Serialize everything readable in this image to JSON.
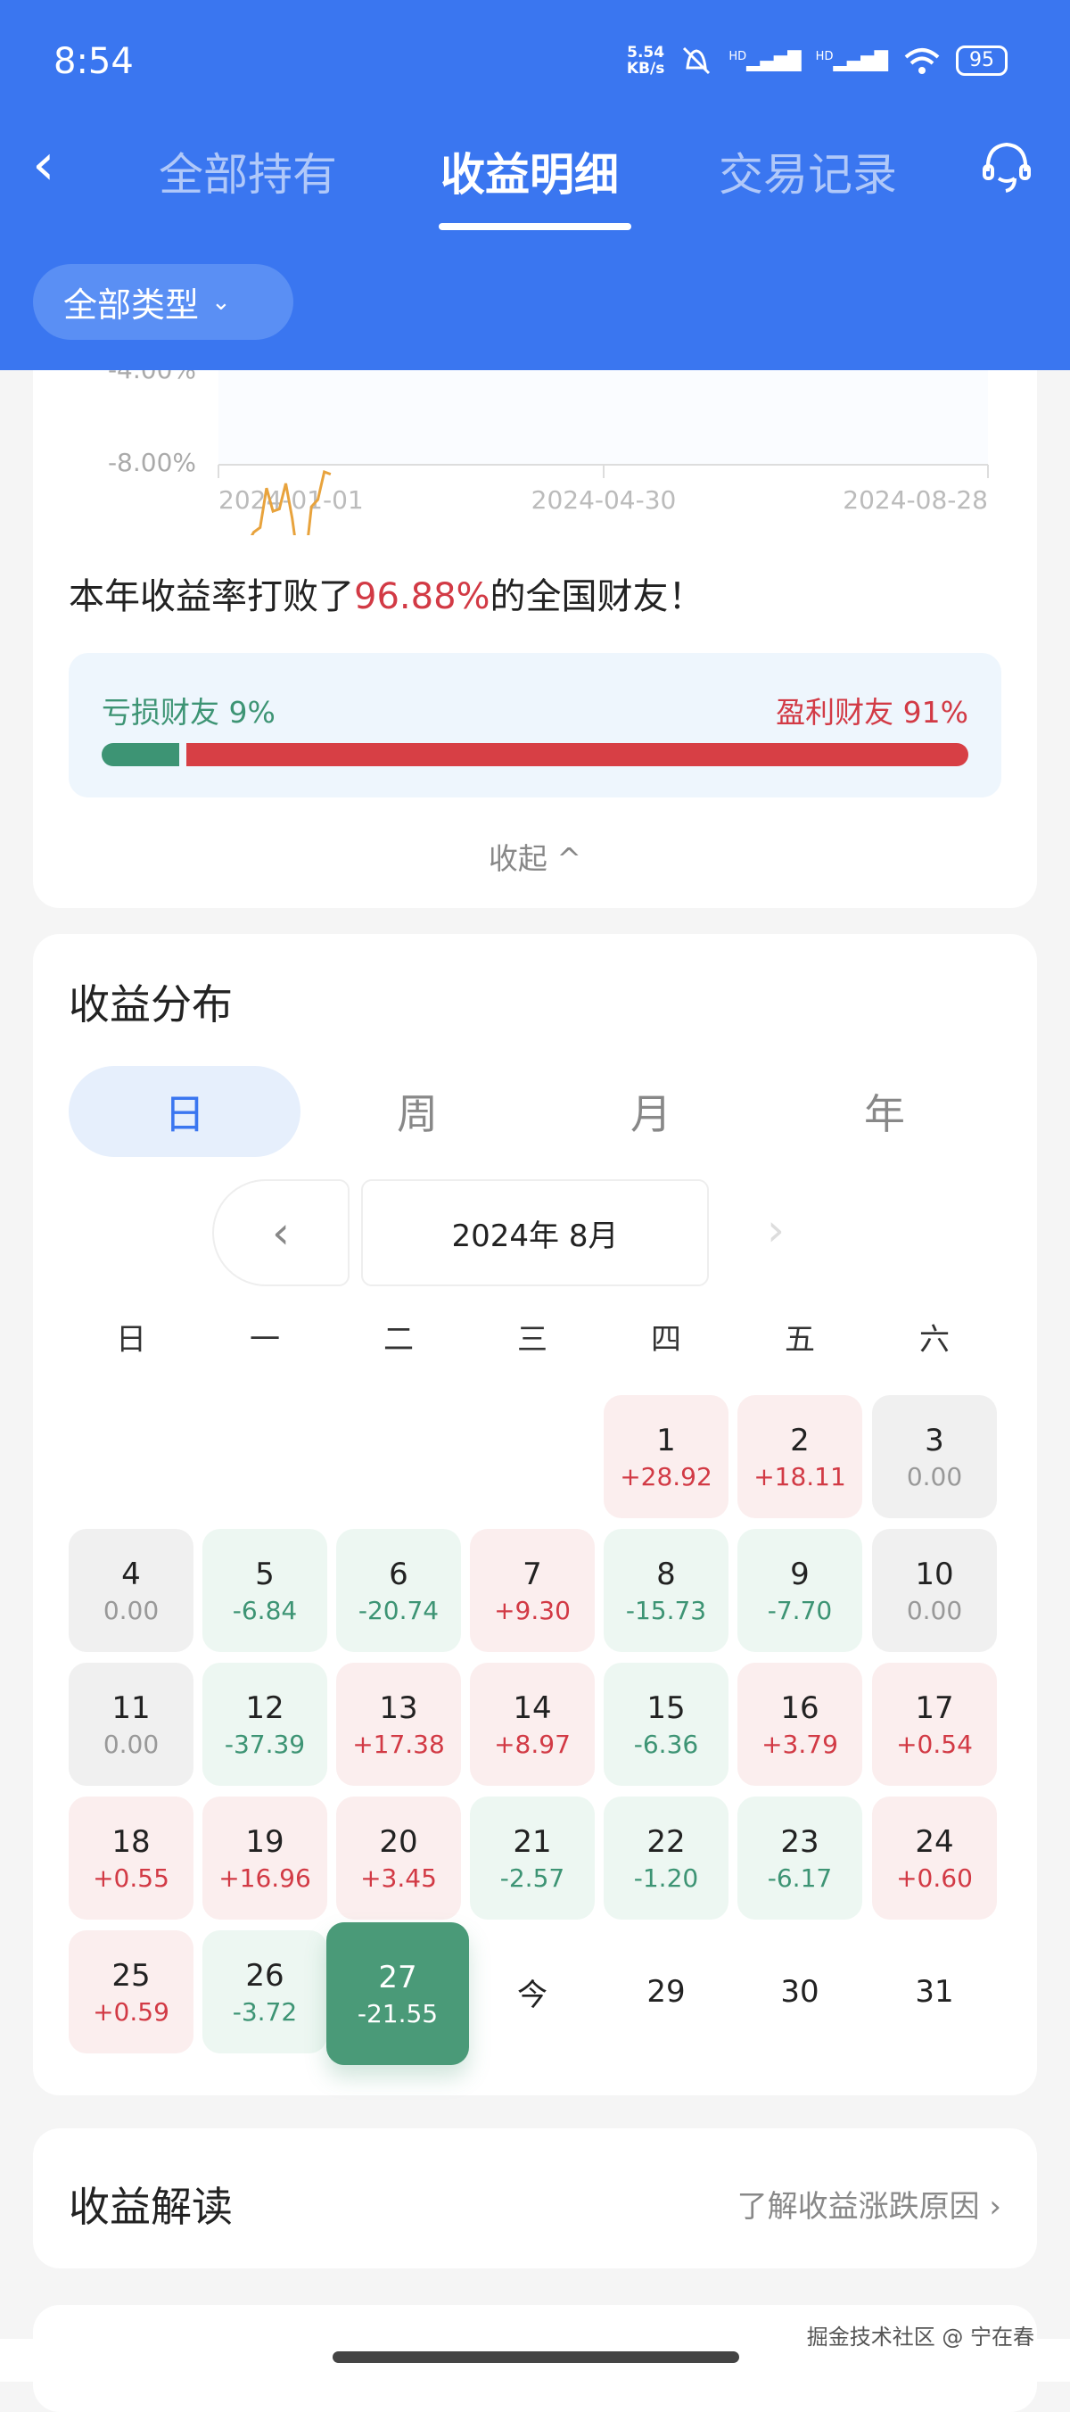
{
  "status_bar": {
    "time": "8:54",
    "net_speed_value": "5.54",
    "net_speed_unit": "KB/s",
    "signal1": "HD",
    "signal2": "HD",
    "battery": "95",
    "icons": [
      "mute-bell-icon",
      "signal-icon",
      "signal-icon",
      "wifi-icon",
      "battery-icon"
    ]
  },
  "nav": {
    "back_icon": "chevron-left-icon",
    "tabs": [
      {
        "label": "全部持有"
      },
      {
        "label": "收益明细",
        "active": true
      },
      {
        "label": "交易记录"
      }
    ],
    "support_icon": "customer-service-icon"
  },
  "filter": {
    "label": "全部类型",
    "icon": "chevron-down-icon"
  },
  "chart_data": {
    "type": "line",
    "y_tick_labels": [
      "-4.00%",
      "-8.00%"
    ],
    "x_tick_labels": [
      "2024-01-01",
      "2024-04-30",
      "2024-08-28"
    ],
    "line_color": "#e8a33d",
    "series": [
      {
        "x": [
          "2024-01-06",
          "2024-01-08",
          "2024-01-10",
          "2024-01-12",
          "2024-01-14",
          "2024-01-16",
          "2024-01-18",
          "2024-01-20",
          "2024-01-22",
          "2024-01-24",
          "2024-01-26",
          "2024-01-28",
          "2024-01-30",
          "2024-02-01",
          "2024-02-03",
          "2024-02-05"
        ],
        "y": [
          -4.2,
          -4.5,
          -4.4,
          -4.9,
          -5.1,
          -6.8,
          -5.8,
          -5.9,
          -7.0,
          -5.5,
          -3.5,
          -3.5,
          -6.0,
          -6.3,
          -7.5,
          -7.4
        ]
      }
    ]
  },
  "rank": {
    "prefix": "本年收益率打败了",
    "percent": "96.88%",
    "suffix": "的全国财友！"
  },
  "ratio": {
    "loss_label": "亏损财友 9%",
    "profit_label": "盈利财友 91%",
    "loss_fraction": 0.09,
    "loss_color": "#3d9474",
    "profit_color": "#d73f45"
  },
  "collapse_label": "收起 ^",
  "distribution": {
    "title": "收益分布",
    "tabs": [
      "日",
      "周",
      "月",
      "年"
    ],
    "active_tab": 0,
    "month": "2024年 8月",
    "prev_icon": "chevron-left-icon",
    "next_icon": "chevron-right-icon",
    "weekdays": [
      "日",
      "一",
      "二",
      "三",
      "四",
      "五",
      "六"
    ],
    "first_weekday": 4,
    "days": [
      {
        "d": "1",
        "v": "+28.92"
      },
      {
        "d": "2",
        "v": "+18.11"
      },
      {
        "d": "3",
        "v": "0.00"
      },
      {
        "d": "4",
        "v": "0.00"
      },
      {
        "d": "5",
        "v": "-6.84"
      },
      {
        "d": "6",
        "v": "-20.74"
      },
      {
        "d": "7",
        "v": "+9.30"
      },
      {
        "d": "8",
        "v": "-15.73"
      },
      {
        "d": "9",
        "v": "-7.70"
      },
      {
        "d": "10",
        "v": "0.00"
      },
      {
        "d": "11",
        "v": "0.00"
      },
      {
        "d": "12",
        "v": "-37.39"
      },
      {
        "d": "13",
        "v": "+17.38"
      },
      {
        "d": "14",
        "v": "+8.97"
      },
      {
        "d": "15",
        "v": "-6.36"
      },
      {
        "d": "16",
        "v": "+3.79"
      },
      {
        "d": "17",
        "v": "+0.54"
      },
      {
        "d": "18",
        "v": "+0.55"
      },
      {
        "d": "19",
        "v": "+16.96"
      },
      {
        "d": "20",
        "v": "+3.45"
      },
      {
        "d": "21",
        "v": "-2.57"
      },
      {
        "d": "22",
        "v": "-1.20"
      },
      {
        "d": "23",
        "v": "-6.17"
      },
      {
        "d": "24",
        "v": "+0.60"
      },
      {
        "d": "25",
        "v": "+0.59"
      },
      {
        "d": "26",
        "v": "-3.72"
      },
      {
        "d": "27",
        "v": "-21.55",
        "selected": true
      },
      {
        "d": "今"
      },
      {
        "d": "29"
      },
      {
        "d": "30"
      },
      {
        "d": "31"
      }
    ]
  },
  "interpretation": {
    "title": "收益解读",
    "link": "了解收益涨跌原因 ›"
  },
  "watermark": "掘金技术社区 @ 宁在春"
}
